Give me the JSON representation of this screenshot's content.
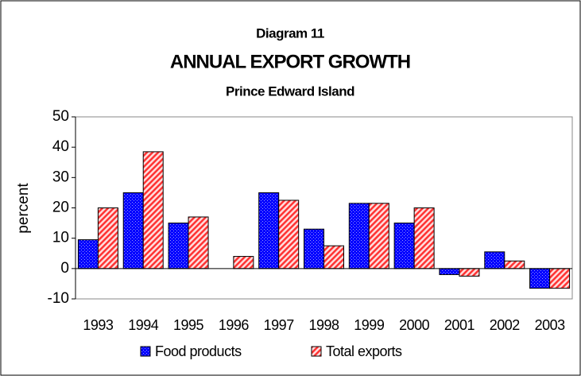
{
  "chart_data": {
    "type": "bar",
    "title": "ANNUAL EXPORT GROWTH",
    "supertitle": "Diagram 11",
    "subtitle": "Prince Edward Island",
    "y_label": "percent",
    "categories": [
      "1993",
      "1994",
      "1995",
      "1996",
      "1997",
      "1998",
      "1999",
      "2000",
      "2001",
      "2002",
      "2003"
    ],
    "series": [
      {
        "name": "Food products",
        "color": "#0000ff",
        "values": [
          9.5,
          25,
          15,
          0,
          25,
          13,
          21.5,
          15,
          -2,
          5.5,
          -6.5
        ]
      },
      {
        "name": "Total exports",
        "color": "#ff6666",
        "values": [
          20,
          38.5,
          17,
          4,
          22.5,
          7.5,
          21.5,
          20,
          -2.5,
          2.5,
          -6.5
        ]
      }
    ],
    "ylim": [
      -10,
      50
    ],
    "yticks": [
      -10,
      0,
      10,
      20,
      30,
      40,
      50
    ],
    "grid": false
  }
}
